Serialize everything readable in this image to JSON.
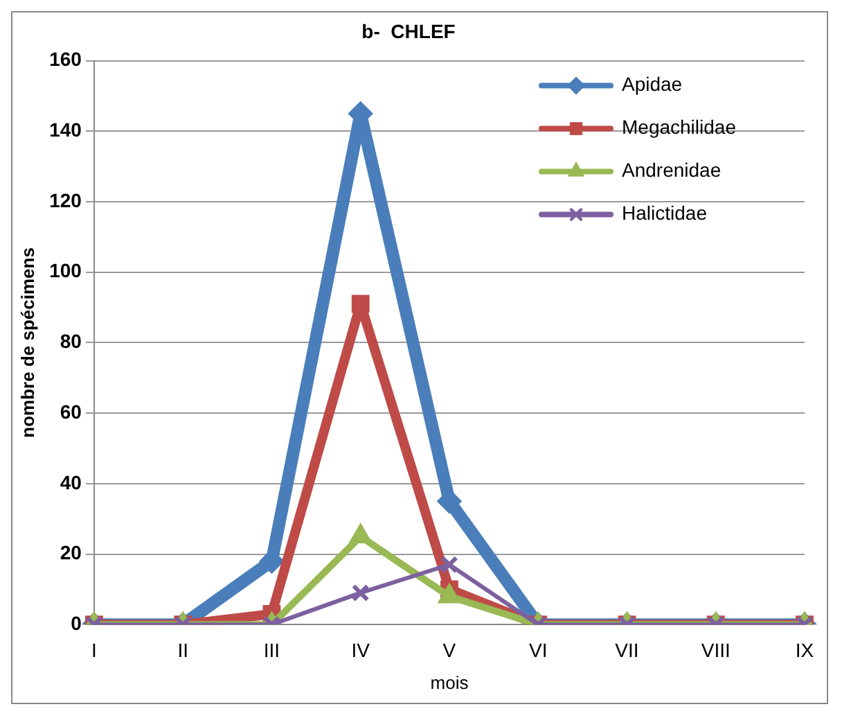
{
  "chart_data": {
    "type": "line",
    "title": "b-  CHLEF",
    "xlabel": "mois",
    "ylabel": "nombre de spécimens",
    "categories": [
      "I",
      "II",
      "III",
      "IV",
      "V",
      "VI",
      "VII",
      "VIII",
      "IX"
    ],
    "series": [
      {
        "name": "Apidae",
        "color": "#4a7ebb",
        "marker": "diamond",
        "values": [
          0,
          0,
          18,
          145,
          35,
          0,
          0,
          0,
          0
        ]
      },
      {
        "name": "Megachilidae",
        "color": "#be4b48",
        "marker": "square",
        "values": [
          0,
          0,
          3,
          91,
          10,
          0,
          0,
          0,
          0
        ]
      },
      {
        "name": "Andrenidae",
        "color": "#98b954",
        "marker": "triangle",
        "values": [
          0,
          0,
          0,
          25,
          8,
          0,
          0,
          0,
          0
        ]
      },
      {
        "name": "Halictidae",
        "color": "#7d60a0",
        "marker": "cross",
        "values": [
          0,
          0,
          0,
          9,
          17,
          0,
          0,
          0,
          0
        ]
      }
    ],
    "ylim": [
      0,
      160
    ],
    "yticks": [
      0,
      20,
      40,
      60,
      80,
      100,
      120,
      140,
      160
    ],
    "grid": "y",
    "legend": "top right",
    "line_style": "solid"
  }
}
